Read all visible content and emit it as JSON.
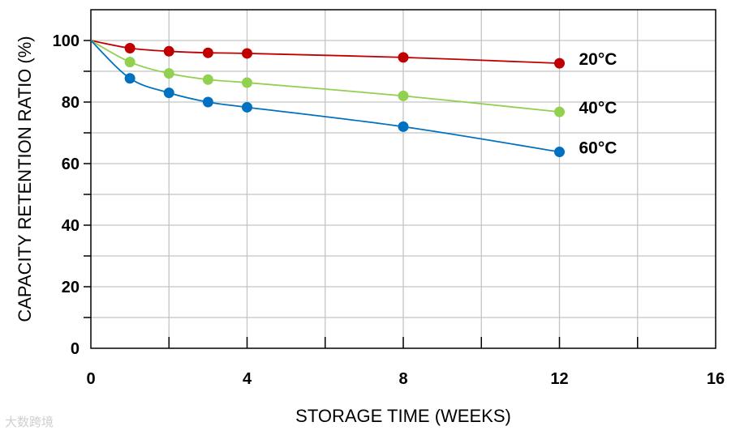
{
  "chart_data": {
    "type": "line",
    "xlabel": "STORAGE TIME (WEEKS)",
    "ylabel": "CAPACITY RETENTION RATIO (%)",
    "xlim": [
      0,
      16
    ],
    "ylim": [
      0,
      110
    ],
    "x_ticks": [
      0,
      4,
      8,
      12,
      16
    ],
    "y_ticks": [
      0,
      20,
      40,
      60,
      80,
      100
    ],
    "grid": true,
    "series": [
      {
        "name": "20°C",
        "color": "#c00000",
        "x": [
          0,
          1,
          2,
          3,
          4,
          8,
          12
        ],
        "y": [
          100,
          97.5,
          96.5,
          96,
          95.8,
          94.5,
          92.6
        ]
      },
      {
        "name": "40°C",
        "color": "#92d050",
        "x": [
          0,
          1,
          2,
          3,
          4,
          8,
          12
        ],
        "y": [
          100,
          93,
          89.3,
          87.3,
          86.3,
          82,
          76.8
        ]
      },
      {
        "name": "60°C",
        "color": "#0070c0",
        "x": [
          0,
          1,
          2,
          3,
          4,
          8,
          12
        ],
        "y": [
          100,
          87.7,
          83,
          80,
          78.3,
          72,
          63.8
        ]
      }
    ]
  },
  "watermark": "大数跨境"
}
